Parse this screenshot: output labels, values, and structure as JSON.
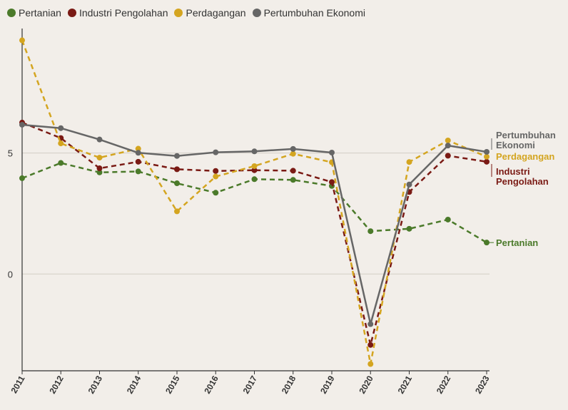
{
  "chart_data": {
    "type": "line",
    "title": "",
    "xlabel": "",
    "ylabel": "",
    "x": [
      "2011",
      "2012",
      "2013",
      "2014",
      "2015",
      "2016",
      "2017",
      "2018",
      "2019",
      "2020",
      "2021",
      "2022",
      "2023"
    ],
    "ylim": [
      -4,
      10
    ],
    "yticks": [
      "0",
      "5"
    ],
    "legend_position": "top-left",
    "grid": true,
    "series": [
      {
        "name": "Pertanian",
        "end_label": "Pertanian",
        "color": "#4b7a2a",
        "dashed": true,
        "values": [
          3.96,
          4.59,
          4.2,
          4.24,
          3.75,
          3.36,
          3.92,
          3.89,
          3.64,
          1.77,
          1.87,
          2.25,
          1.3
        ]
      },
      {
        "name": "Industri Pengolahan",
        "end_label": "Industri Pengolahan",
        "color": "#7a1a14",
        "dashed": true,
        "values": [
          6.26,
          5.62,
          4.37,
          4.64,
          4.33,
          4.26,
          4.29,
          4.27,
          3.8,
          -2.93,
          3.39,
          4.89,
          4.64
        ]
      },
      {
        "name": "Perdagangan",
        "end_label": "Perdagangan",
        "color": "#d4a520",
        "dashed": true,
        "values": [
          9.66,
          5.4,
          4.81,
          5.18,
          2.59,
          4.03,
          4.46,
          4.97,
          4.62,
          -3.72,
          4.63,
          5.52,
          4.85
        ]
      },
      {
        "name": "Pertumbuhan Ekonomi",
        "end_label": "Pertumbuhan Ekonomi",
        "color": "#666666",
        "dashed": false,
        "values": [
          6.17,
          6.03,
          5.56,
          5.01,
          4.88,
          5.03,
          5.07,
          5.17,
          5.02,
          -2.07,
          3.7,
          5.31,
          5.05
        ]
      }
    ]
  }
}
